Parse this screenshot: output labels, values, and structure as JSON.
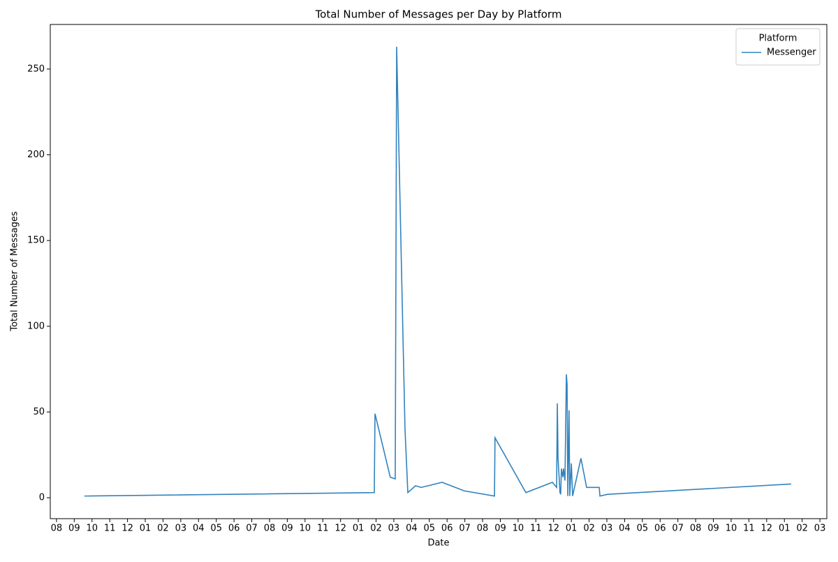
{
  "chart_data": {
    "type": "line",
    "title": "Total Number of Messages per Day by Platform",
    "x_label": "Date",
    "y_label": "Total Number of Messages",
    "legend_title": "Platform",
    "legend_position": "upper right",
    "x": [
      1.57,
      17.9,
      17.94,
      18.8,
      19.08,
      19.16,
      19.63,
      19.79,
      20.22,
      20.54,
      21.72,
      22.97,
      24.67,
      24.7,
      26.44,
      27.93,
      28.17,
      28.21,
      28.25,
      28.36,
      28.4,
      28.44,
      28.52,
      28.56,
      28.64,
      28.72,
      28.76,
      28.8,
      28.87,
      28.91,
      29.0,
      29.07,
      29.54,
      29.86,
      30.57,
      30.61,
      31.04,
      41.38
    ],
    "series": [
      {
        "name": "Messenger",
        "color": "#3282bd",
        "values": [
          1,
          3,
          49,
          12,
          11,
          263,
          40,
          3,
          7,
          6,
          9,
          4,
          1,
          35,
          3,
          9,
          6,
          55,
          23,
          3,
          2,
          17,
          12,
          17,
          10,
          72,
          66,
          1,
          51,
          1,
          20,
          1,
          23,
          6,
          6,
          1,
          2,
          8
        ]
      }
    ],
    "xlim": [
      -0.35,
      43.39
    ],
    "xticks": [
      {
        "value": 0,
        "label": "08"
      },
      {
        "value": 1,
        "label": "09"
      },
      {
        "value": 2,
        "label": "10"
      },
      {
        "value": 3,
        "label": "11"
      },
      {
        "value": 4,
        "label": "12"
      },
      {
        "value": 5,
        "label": "01"
      },
      {
        "value": 6,
        "label": "02"
      },
      {
        "value": 7,
        "label": "03"
      },
      {
        "value": 8,
        "label": "04"
      },
      {
        "value": 9,
        "label": "05"
      },
      {
        "value": 10,
        "label": "06"
      },
      {
        "value": 11,
        "label": "07"
      },
      {
        "value": 12,
        "label": "08"
      },
      {
        "value": 13,
        "label": "09"
      },
      {
        "value": 14,
        "label": "10"
      },
      {
        "value": 15,
        "label": "11"
      },
      {
        "value": 16,
        "label": "12"
      },
      {
        "value": 17,
        "label": "01"
      },
      {
        "value": 18,
        "label": "02"
      },
      {
        "value": 19,
        "label": "03"
      },
      {
        "value": 20,
        "label": "04"
      },
      {
        "value": 21,
        "label": "05"
      },
      {
        "value": 22,
        "label": "06"
      },
      {
        "value": 23,
        "label": "07"
      },
      {
        "value": 24,
        "label": "08"
      },
      {
        "value": 25,
        "label": "09"
      },
      {
        "value": 26,
        "label": "10"
      },
      {
        "value": 27,
        "label": "11"
      },
      {
        "value": 28,
        "label": "12"
      },
      {
        "value": 29,
        "label": "01"
      },
      {
        "value": 30,
        "label": "02"
      },
      {
        "value": 31,
        "label": "03"
      },
      {
        "value": 32,
        "label": "04"
      },
      {
        "value": 33,
        "label": "05"
      },
      {
        "value": 34,
        "label": "06"
      },
      {
        "value": 35,
        "label": "07"
      },
      {
        "value": 36,
        "label": "08"
      },
      {
        "value": 37,
        "label": "09"
      },
      {
        "value": 38,
        "label": "10"
      },
      {
        "value": 39,
        "label": "11"
      },
      {
        "value": 40,
        "label": "12"
      },
      {
        "value": 41,
        "label": "01"
      },
      {
        "value": 42,
        "label": "02"
      },
      {
        "value": 43,
        "label": "03"
      }
    ],
    "ylim": [
      -12.2,
      276
    ],
    "yticks": [
      0,
      50,
      100,
      150,
      200,
      250
    ],
    "grid": false
  }
}
